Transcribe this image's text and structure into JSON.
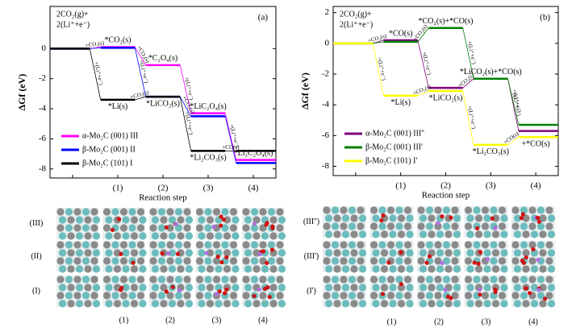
{
  "chart_data": [
    {
      "type": "energy_levels",
      "panel": "(a)",
      "y_label": "ΔGf (eV)",
      "x_label": "Reaction step",
      "annotations": [
        "2CO₂(g)+",
        "2(Li⁺+e⁻)"
      ],
      "categories": [
        null,
        "(1)",
        "(2)",
        "(3)",
        "(4)"
      ],
      "ylim": [
        -8.6,
        2.8
      ],
      "yticks": [
        -8,
        -6,
        -4,
        -2,
        0
      ],
      "series": [
        {
          "name": "α-Mo₂C (001) III",
          "color": "#ff00ff",
          "values": [
            0,
            0.1,
            -1.1,
            -4.3,
            -7.4
          ],
          "labels": [
            null,
            "*CO₂(s)",
            "*C₂O₄(s)",
            "*LiC₂O₄(s)",
            "*Li₂C₂O₄(s)"
          ],
          "transitions": [
            "+CO₂(s)",
            "+CO₂(s)",
            "+(Li⁺+e⁻)",
            "+(Li⁺+e⁻)"
          ]
        },
        {
          "name": "β-Mo₂C (001) II",
          "color": "#0000ff",
          "values": [
            0,
            0.05,
            -3.2,
            -4.5,
            -7.6
          ],
          "labels": [
            null,
            null,
            null,
            null,
            null
          ],
          "transitions": [
            null,
            "+(Li⁺+e⁻)",
            "+CO₂(s)",
            null
          ]
        },
        {
          "name": "β-Mo₂C (101) I",
          "color": "#000000",
          "values": [
            0,
            -3.4,
            -3.2,
            -6.8,
            -6.8
          ],
          "labels": [
            null,
            "*Li(s)",
            "*LiCO₂(s)",
            "*Li₂CO₃(s)",
            null
          ],
          "transitions": [
            "+(Li⁺+e⁻)",
            "+CO₂(s)",
            "+(Li⁺+e⁻)",
            "+CO(s)"
          ]
        }
      ]
    },
    {
      "type": "energy_levels",
      "panel": "(b)",
      "y_label": "ΔGf (eV)",
      "x_label": "Reaction step",
      "annotations": [
        "2CO₂(g)+",
        "2(Li⁺+e⁻)"
      ],
      "categories": [
        null,
        "(1)",
        "(2)",
        "(3)",
        "(4)"
      ],
      "ylim": [
        -8.6,
        2.4
      ],
      "yticks": [
        -8,
        -6,
        -4,
        -2,
        0,
        2
      ],
      "series": [
        {
          "name": "α-Mo₂C (001) III''",
          "color": "#800080",
          "values": [
            0,
            0.2,
            -2.9,
            -2.3,
            -5.7
          ],
          "labels": [
            null,
            "*CO(s)",
            null,
            null,
            null
          ],
          "transitions": [
            "+CO₂(s)",
            "+(Li⁺+e⁻)",
            "+CO₂(s)",
            "+(Li⁺+e⁻)"
          ]
        },
        {
          "name": "β-Mo₂C (001) III'",
          "color": "#008000",
          "values": [
            0,
            0.1,
            1.0,
            -2.3,
            -5.3
          ],
          "labels": [
            null,
            null,
            "*CO₂(s)+*CO(s)",
            "*LiCO₂(s)+*CO(s)",
            null
          ],
          "transitions": [
            null,
            "+CO₂(s)",
            "+(Li⁺+e⁻)",
            "+(Li⁺+e⁻)"
          ]
        },
        {
          "name": "β-Mo₂C (101) I'",
          "color": "#ffff00",
          "values": [
            0,
            -3.4,
            -3.1,
            -6.6,
            -6.1
          ],
          "labels": [
            null,
            "*Li(s)",
            "*LiCO₂(s)",
            "*Li₂CO₃(s)",
            "+*CO(s)"
          ],
          "transitions": [
            "+(Li⁺+e⁻)",
            "+CO₂(s)",
            "+(Li⁺+e⁻)",
            "+CO(s)"
          ]
        }
      ]
    }
  ],
  "structures": [
    {
      "rows": [
        "(III)",
        "(II)",
        "(I)"
      ],
      "columns": [
        "(1)",
        "(2)",
        "(3)",
        "(4)"
      ]
    },
    {
      "rows": [
        "(III'')",
        "(III')",
        "(I')"
      ],
      "columns": [
        "(1)",
        "(2)",
        "(3)",
        "(4)"
      ]
    }
  ]
}
